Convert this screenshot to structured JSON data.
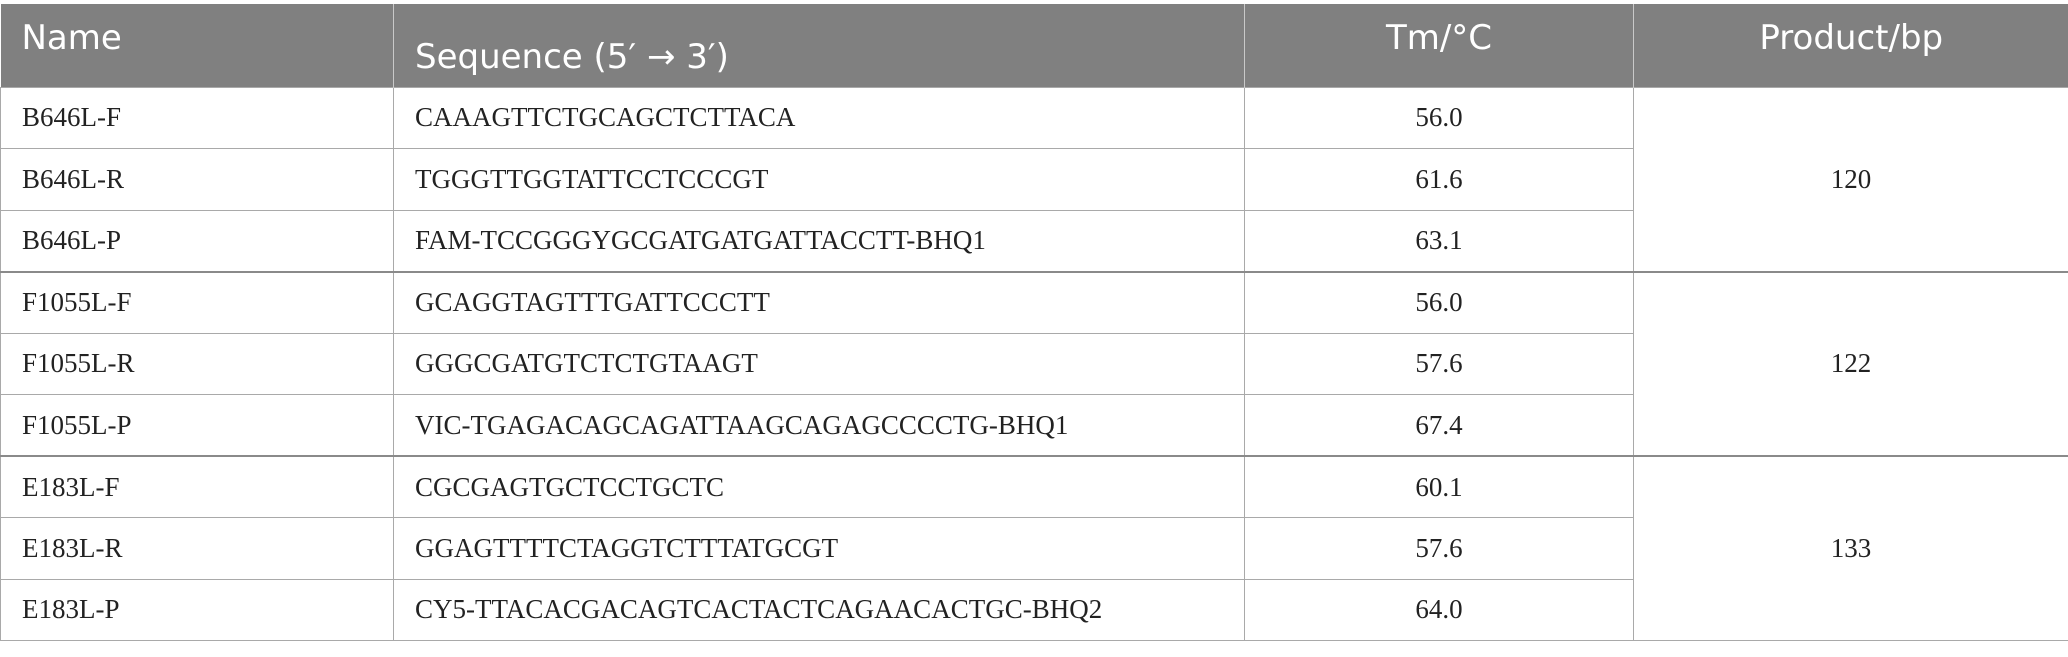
{
  "table": {
    "headers": {
      "name": "Name",
      "sequence": "Sequence (5′ → 3′)",
      "tm": "Tm/°C",
      "product": "Product/bp"
    },
    "rows": [
      {
        "name": "B646L-F",
        "sequence": "CAAAGTTCTGCAGCTCTTACA",
        "tm": "56.0"
      },
      {
        "name": "B646L-R",
        "sequence": "TGGGTTGGTATTCCTCCCGT",
        "tm": "61.6"
      },
      {
        "name": "B646L-P",
        "sequence": "FAM-TCCGGGYGCGATGATGATTACCTT-BHQ1",
        "tm": "63.1"
      },
      {
        "name": "F1055L-F",
        "sequence": "GCAGGTAGTTTGATTCCCTT",
        "tm": "56.0"
      },
      {
        "name": "F1055L-R",
        "sequence": "GGGCGATGTCTCTGTAAGT",
        "tm": "57.6"
      },
      {
        "name": "F1055L-P",
        "sequence": "VIC-TGAGACAGCAGATTAAGCAGAGCCCCTG-BHQ1",
        "tm": "67.4"
      },
      {
        "name": "E183L-F",
        "sequence": "CGCGAGTGCTCCTGCTC",
        "tm": "60.1"
      },
      {
        "name": "E183L-R",
        "sequence": "GGAGTTTTCTAGGTCTTTATGCGT",
        "tm": "57.6"
      },
      {
        "name": "E183L-P",
        "sequence": "CY5-TTACACGACAGTCACTACTCAGAACACTGC-BHQ2",
        "tm": "64.0"
      }
    ],
    "products": [
      "120",
      "122",
      "133"
    ]
  }
}
